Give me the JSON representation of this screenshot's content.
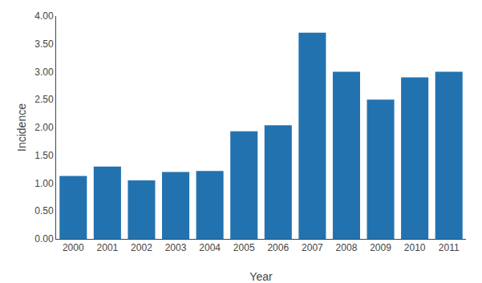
{
  "chart_data": {
    "type": "bar",
    "categories": [
      "2000",
      "2001",
      "2002",
      "2003",
      "2004",
      "2005",
      "2006",
      "2007",
      "2008",
      "2009",
      "2010",
      "2011"
    ],
    "values": [
      1.13,
      1.3,
      1.05,
      1.2,
      1.22,
      1.93,
      2.04,
      3.7,
      3.0,
      2.5,
      2.9,
      3.0
    ],
    "color": "#2372b0",
    "xlabel": "Year",
    "ylabel": "Incidence",
    "ylim": [
      0.0,
      4.0
    ],
    "yticks": [
      {
        "value": 0.0,
        "label": "0.00"
      },
      {
        "value": 0.5,
        "label": "0.50"
      },
      {
        "value": 1.0,
        "label": "1.00"
      },
      {
        "value": 1.5,
        "label": "1.50"
      },
      {
        "value": 2.0,
        "label": "2.00"
      },
      {
        "value": 2.5,
        "label": "2.50"
      },
      {
        "value": 3.0,
        "label": "3.00"
      },
      {
        "value": 3.5,
        "label": "3.50"
      },
      {
        "value": 4.0,
        "label": "4.00"
      }
    ],
    "grid": false
  }
}
